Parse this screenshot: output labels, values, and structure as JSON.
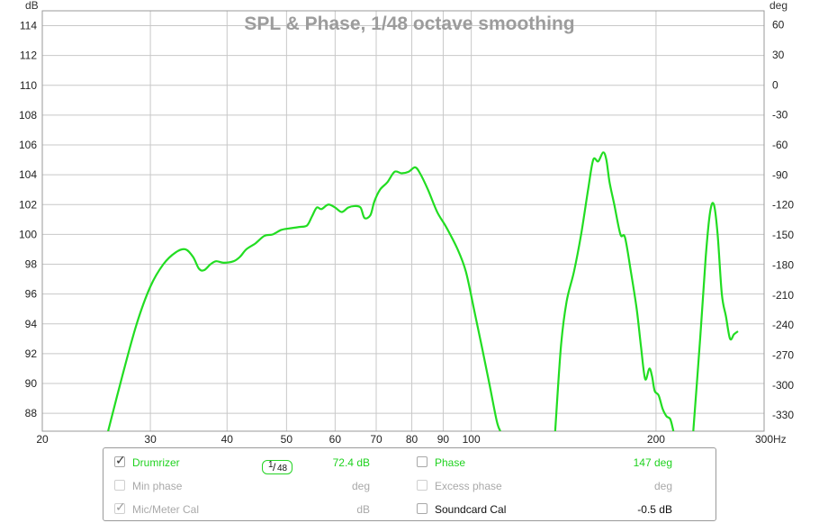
{
  "chart_data": {
    "type": "line",
    "title": "SPL & Phase, 1/48 octave smoothing",
    "y_unit_left": "dB",
    "y_unit_right": "deg",
    "x_unit": "Hz",
    "x_scale": "log",
    "xlim": [
      20,
      300
    ],
    "ylim": [
      86.8,
      115
    ],
    "ylim_right": [
      -346,
      74
    ],
    "grid": true,
    "x_ticks": [
      20,
      30,
      40,
      50,
      60,
      70,
      80,
      90,
      100,
      200,
      300
    ],
    "x_tick_labels": [
      "20",
      "30",
      "40",
      "50",
      "60",
      "70",
      "80",
      "90",
      "100",
      "200",
      "300"
    ],
    "y_ticks": [
      88,
      90,
      92,
      94,
      96,
      98,
      100,
      102,
      104,
      106,
      108,
      110,
      112,
      114
    ],
    "y_ticks_right": [
      -330,
      -300,
      -270,
      -240,
      -210,
      -180,
      -150,
      -120,
      -90,
      -60,
      -30,
      0,
      30,
      60
    ],
    "series": [
      {
        "name": "Drumrizer",
        "color": "#22dd22",
        "segments": [
          [
            [
              25.6,
              86.8
            ],
            [
              27.0,
              90.5
            ],
            [
              28.5,
              94.0
            ],
            [
              30.0,
              96.5
            ],
            [
              31.5,
              98.0
            ],
            [
              33.0,
              98.8
            ],
            [
              34.2,
              99.0
            ],
            [
              35.2,
              98.5
            ],
            [
              36.0,
              97.7
            ],
            [
              36.7,
              97.6
            ],
            [
              37.6,
              98.0
            ],
            [
              38.4,
              98.2
            ],
            [
              39.5,
              98.1
            ],
            [
              41.0,
              98.2
            ],
            [
              42.0,
              98.5
            ],
            [
              43.0,
              99.0
            ],
            [
              44.5,
              99.4
            ],
            [
              46.0,
              99.9
            ],
            [
              47.5,
              100.0
            ],
            [
              49.0,
              100.3
            ],
            [
              50.5,
              100.4
            ],
            [
              52.5,
              100.5
            ],
            [
              54.0,
              100.6
            ],
            [
              55.0,
              101.2
            ],
            [
              56.0,
              101.8
            ],
            [
              57.0,
              101.7
            ],
            [
              58.5,
              102.0
            ],
            [
              60.0,
              101.8
            ],
            [
              61.5,
              101.5
            ],
            [
              63.0,
              101.8
            ],
            [
              64.5,
              101.9
            ],
            [
              66.0,
              101.8
            ],
            [
              67.0,
              101.1
            ],
            [
              68.5,
              101.3
            ],
            [
              69.5,
              102.2
            ],
            [
              71.0,
              103.0
            ],
            [
              73.0,
              103.5
            ],
            [
              75.0,
              104.2
            ],
            [
              77.0,
              104.1
            ],
            [
              79.0,
              104.2
            ],
            [
              81.0,
              104.5
            ],
            [
              82.5,
              104.1
            ],
            [
              85.0,
              103.0
            ],
            [
              88.0,
              101.5
            ],
            [
              91.0,
              100.5
            ],
            [
              95.0,
              99.0
            ],
            [
              98.0,
              97.5
            ],
            [
              101.0,
              95.0
            ],
            [
              104.0,
              92.5
            ],
            [
              107.0,
              90.0
            ],
            [
              110.0,
              87.5
            ],
            [
              111.5,
              86.8
            ]
          ],
          [
            [
              137.0,
              86.8
            ],
            [
              140.0,
              92.5
            ],
            [
              143.0,
              95.5
            ],
            [
              147.0,
              97.5
            ],
            [
              151.0,
              100.0
            ],
            [
              155.0,
              103.0
            ],
            [
              158.0,
              105.0
            ],
            [
              161.0,
              104.9
            ],
            [
              164.0,
              105.5
            ],
            [
              166.0,
              105.0
            ],
            [
              168.0,
              103.5
            ],
            [
              171.0,
              102.0
            ],
            [
              175.0,
              100.0
            ],
            [
              178.0,
              99.8
            ],
            [
              182.0,
              97.5
            ],
            [
              186.0,
              95.0
            ],
            [
              189.0,
              92.5
            ],
            [
              192.0,
              90.3
            ],
            [
              195.0,
              91.0
            ],
            [
              197.0,
              90.5
            ],
            [
              199.0,
              89.5
            ],
            [
              202.0,
              89.2
            ],
            [
              205.0,
              88.3
            ],
            [
              208.0,
              87.8
            ],
            [
              211.0,
              87.6
            ],
            [
              213.5,
              86.8
            ]
          ],
          [
            [
              230.0,
              86.8
            ],
            [
              236.0,
              93.0
            ],
            [
              241.0,
              98.5
            ],
            [
              245.0,
              101.5
            ],
            [
              248.5,
              102.0
            ],
            [
              252.0,
              100.0
            ],
            [
              256.0,
              96.0
            ],
            [
              260.0,
              94.5
            ],
            [
              264.0,
              93.0
            ],
            [
              268.0,
              93.3
            ],
            [
              272.0,
              93.5
            ]
          ]
        ]
      }
    ]
  },
  "legend": {
    "rows": [
      {
        "left": {
          "label": "Drumrizer",
          "checked": true,
          "value": "72.4 dB",
          "style": "active"
        },
        "right": {
          "label": "Phase",
          "checked": false,
          "value": "147 deg",
          "style": "active"
        }
      },
      {
        "left": {
          "label": "Min phase",
          "checked": false,
          "value": "deg",
          "style": "dim"
        },
        "right": {
          "label": "Excess phase",
          "checked": false,
          "value": "deg",
          "style": "dim"
        }
      },
      {
        "left": {
          "label": "Mic/Meter Cal",
          "checked": true,
          "value": "dB",
          "style": "dim"
        },
        "right": {
          "label": "Soundcard Cal",
          "checked": false,
          "value": "-0.5 dB",
          "style": "plain"
        }
      }
    ],
    "smoothing_badge": {
      "numerator": "1",
      "denominator": "48"
    }
  }
}
